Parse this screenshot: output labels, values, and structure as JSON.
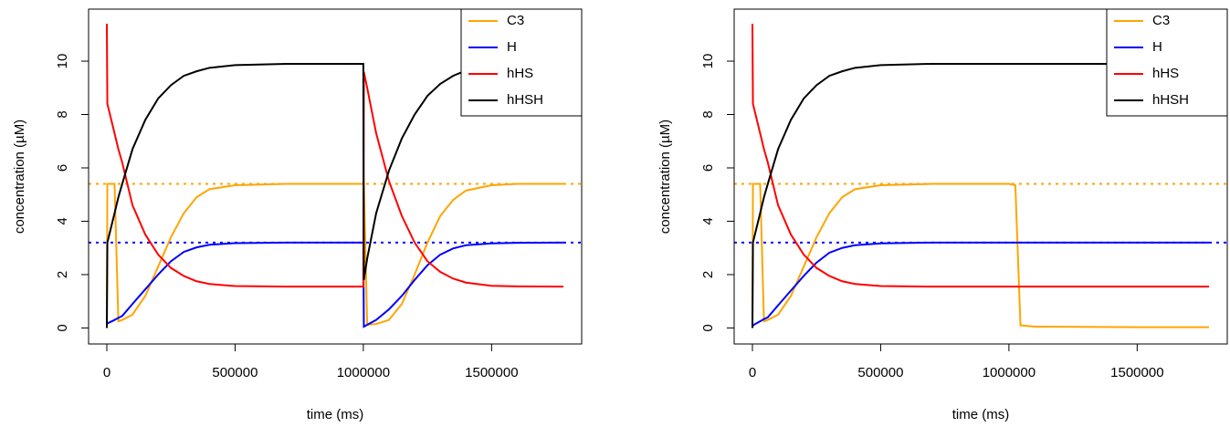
{
  "chart_data": [
    {
      "type": "line",
      "xlabel": "time (ms)",
      "ylabel": "concentration (µM)",
      "xlim": [
        -71200,
        1851200
      ],
      "ylim": [
        -0.6,
        11.95
      ],
      "xticks": [
        0,
        500000,
        1000000,
        1500000
      ],
      "yticks": [
        0,
        2,
        4,
        6,
        8,
        10
      ],
      "legend": "top-right",
      "x": [
        0,
        2000,
        30000,
        45000,
        60000,
        100000,
        150000,
        200000,
        250000,
        300000,
        350000,
        400000,
        500000,
        700000,
        1000000,
        1002000,
        1015000,
        1050000,
        1100000,
        1150000,
        1200000,
        1250000,
        1300000,
        1350000,
        1400000,
        1500000,
        1600000,
        1780000
      ],
      "series": [
        {
          "name": "C3",
          "color": "#FFA500",
          "values": [
            0,
            5.4,
            5.4,
            0.25,
            0.3,
            0.5,
            1.2,
            2.3,
            3.4,
            4.3,
            4.9,
            5.2,
            5.35,
            5.4,
            5.4,
            5.4,
            0.12,
            0.15,
            0.3,
            0.9,
            2.0,
            3.2,
            4.2,
            4.8,
            5.15,
            5.35,
            5.4,
            5.4
          ]
        },
        {
          "name": "H",
          "color": "#0000FF",
          "values": [
            0.15,
            0.17,
            0.3,
            0.38,
            0.45,
            0.9,
            1.45,
            2.0,
            2.5,
            2.85,
            3.02,
            3.12,
            3.18,
            3.2,
            3.2,
            0.05,
            0.12,
            0.3,
            0.7,
            1.2,
            1.8,
            2.35,
            2.75,
            2.98,
            3.1,
            3.17,
            3.19,
            3.2
          ]
        },
        {
          "name": "hHS",
          "color": "#FF0000",
          "values": [
            11.4,
            8.4,
            7.3,
            6.7,
            6.2,
            4.6,
            3.5,
            2.75,
            2.25,
            1.95,
            1.75,
            1.65,
            1.57,
            1.55,
            1.55,
            9.6,
            9.0,
            7.3,
            5.5,
            4.2,
            3.2,
            2.5,
            2.1,
            1.85,
            1.7,
            1.58,
            1.56,
            1.55
          ]
        },
        {
          "name": "hHSH",
          "color": "#000000",
          "values": [
            0,
            3.2,
            4.3,
            4.9,
            5.4,
            6.7,
            7.8,
            8.6,
            9.1,
            9.45,
            9.62,
            9.75,
            9.85,
            9.9,
            9.9,
            1.8,
            2.6,
            4.3,
            5.9,
            7.1,
            8.0,
            8.7,
            9.15,
            9.45,
            9.65,
            9.85,
            9.9,
            9.9
          ]
        }
      ],
      "hlines": [
        {
          "value": 5.4,
          "color": "#FFA500"
        },
        {
          "value": 3.2,
          "color": "#0000FF"
        }
      ]
    },
    {
      "type": "line",
      "xlabel": "time (ms)",
      "ylabel": "concentration (µM)",
      "xlim": [
        -71200,
        1851200
      ],
      "ylim": [
        -0.6,
        11.95
      ],
      "xticks": [
        0,
        500000,
        1000000,
        1500000
      ],
      "yticks": [
        0,
        2,
        4,
        6,
        8,
        10
      ],
      "legend": "top-right",
      "x": [
        0,
        2000,
        30000,
        45000,
        60000,
        100000,
        150000,
        200000,
        250000,
        300000,
        350000,
        400000,
        500000,
        700000,
        1000000,
        1025000,
        1045000,
        1100000,
        1500000,
        1780000
      ],
      "series": [
        {
          "name": "C3",
          "color": "#FFA500",
          "values": [
            0,
            5.4,
            5.4,
            0.25,
            0.3,
            0.5,
            1.2,
            2.3,
            3.4,
            4.3,
            4.9,
            5.2,
            5.35,
            5.4,
            5.4,
            5.35,
            0.1,
            0.05,
            0.03,
            0.03
          ]
        },
        {
          "name": "H",
          "color": "#0000FF",
          "values": [
            0.02,
            0.1,
            0.25,
            0.33,
            0.4,
            0.85,
            1.4,
            1.95,
            2.45,
            2.82,
            3.0,
            3.1,
            3.17,
            3.2,
            3.2,
            3.2,
            3.2,
            3.2,
            3.2,
            3.2
          ]
        },
        {
          "name": "hHS",
          "color": "#FF0000",
          "values": [
            11.4,
            8.4,
            7.3,
            6.7,
            6.2,
            4.6,
            3.5,
            2.75,
            2.25,
            1.95,
            1.75,
            1.65,
            1.57,
            1.55,
            1.55,
            1.55,
            1.55,
            1.55,
            1.55,
            1.55
          ]
        },
        {
          "name": "hHSH",
          "color": "#000000",
          "values": [
            0,
            3.2,
            4.3,
            4.9,
            5.4,
            6.7,
            7.8,
            8.6,
            9.1,
            9.45,
            9.62,
            9.75,
            9.85,
            9.9,
            9.9,
            9.9,
            9.9,
            9.9,
            9.9,
            9.9
          ]
        }
      ],
      "hlines": [
        {
          "value": 5.4,
          "color": "#FFA500"
        },
        {
          "value": 3.2,
          "color": "#0000FF"
        }
      ]
    }
  ]
}
